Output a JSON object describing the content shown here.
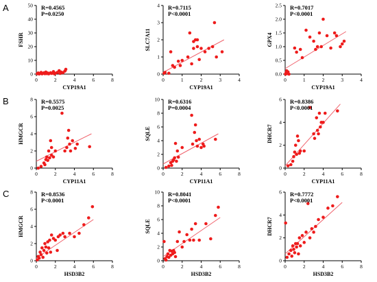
{
  "figure": {
    "row_labels": [
      "A",
      "B",
      "C"
    ],
    "colors": {
      "point": "#ee1c1c",
      "fit_line": "#f0616b",
      "axis": "#000000"
    }
  },
  "chart_data": [
    {
      "type": "scatter",
      "row": "A",
      "xlabel": "CYP19A1",
      "ylabel": "FSHR",
      "stats": [
        "R=0.4565",
        "P=0.0250"
      ],
      "xlim": [
        0,
        8
      ],
      "xticks": [
        0,
        2,
        4,
        6,
        8
      ],
      "ylim": [
        0,
        50
      ],
      "yticks": [
        0,
        10,
        20,
        30,
        40,
        50
      ],
      "points": [
        [
          0.1,
          0.3
        ],
        [
          0.2,
          0.8
        ],
        [
          0.3,
          0.1
        ],
        [
          0.4,
          0.5
        ],
        [
          0.5,
          1.2
        ],
        [
          0.6,
          0.2
        ],
        [
          0.7,
          0.6
        ],
        [
          0.8,
          0.9
        ],
        [
          0.9,
          0.3
        ],
        [
          1.0,
          1.5
        ],
        [
          1.1,
          0.4
        ],
        [
          1.2,
          0.8
        ],
        [
          1.3,
          0.2
        ],
        [
          1.5,
          1.0
        ],
        [
          1.6,
          0.5
        ],
        [
          1.8,
          1.8
        ],
        [
          1.9,
          0.2
        ],
        [
          2.0,
          0.6
        ],
        [
          2.2,
          1.2
        ],
        [
          2.4,
          2.5
        ],
        [
          2.5,
          0.5
        ],
        [
          2.6,
          1.5
        ],
        [
          2.8,
          1.0
        ],
        [
          3.0,
          2.2
        ],
        [
          3.1,
          3.5
        ]
      ],
      "fit": [
        [
          0,
          0.2
        ],
        [
          3.2,
          2.2
        ]
      ]
    },
    {
      "type": "scatter",
      "row": "A",
      "xlabel": "CYP19A1",
      "ylabel": "SLC7A11",
      "stats": [
        "R=0.7115",
        "P<0.0001"
      ],
      "xlim": [
        0,
        4
      ],
      "xticks": [
        0,
        1,
        2,
        3,
        4
      ],
      "ylim": [
        0,
        4
      ],
      "yticks": [
        0,
        1,
        2,
        3,
        4
      ],
      "points": [
        [
          0.05,
          0.05
        ],
        [
          0.1,
          0.1
        ],
        [
          0.3,
          0.05
        ],
        [
          0.4,
          1.3
        ],
        [
          0.5,
          0.5
        ],
        [
          0.6,
          0.4
        ],
        [
          0.8,
          0.75
        ],
        [
          0.9,
          0.5
        ],
        [
          1.0,
          0.8
        ],
        [
          1.3,
          1.0
        ],
        [
          1.4,
          2.4
        ],
        [
          1.5,
          0.6
        ],
        [
          1.6,
          1.5
        ],
        [
          1.6,
          1.9
        ],
        [
          1.7,
          2.0
        ],
        [
          1.8,
          1.6
        ],
        [
          1.8,
          2.0
        ],
        [
          1.9,
          0.85
        ],
        [
          2.0,
          1.5
        ],
        [
          2.2,
          1.3
        ],
        [
          2.4,
          1.5
        ],
        [
          2.6,
          1.6
        ],
        [
          2.7,
          3.0
        ],
        [
          2.8,
          1.0
        ],
        [
          3.1,
          1.3
        ]
      ],
      "fit": [
        [
          0,
          0.1
        ],
        [
          3.2,
          2.0
        ]
      ]
    },
    {
      "type": "scatter",
      "row": "A",
      "xlabel": "CYP19A1",
      "ylabel": "GPX4",
      "stats": [
        "R=0.7017",
        "P<0.0001"
      ],
      "xlim": [
        0,
        4
      ],
      "xticks": [
        0,
        1,
        2,
        3,
        4
      ],
      "ylim": [
        0,
        2.5
      ],
      "yticks": [
        0.0,
        0.5,
        1.0,
        1.5,
        2.0,
        2.5
      ],
      "points": [
        [
          0.02,
          0.0
        ],
        [
          0.05,
          0.05
        ],
        [
          0.08,
          0.12
        ],
        [
          0.1,
          0.02
        ],
        [
          0.15,
          0.08
        ],
        [
          0.2,
          0.0
        ],
        [
          0.5,
          0.95
        ],
        [
          0.6,
          0.8
        ],
        [
          0.8,
          0.9
        ],
        [
          0.9,
          0.6
        ],
        [
          1.1,
          1.6
        ],
        [
          1.3,
          1.35
        ],
        [
          1.5,
          1.2
        ],
        [
          1.6,
          0.9
        ],
        [
          1.7,
          1.0
        ],
        [
          1.8,
          1.5
        ],
        [
          1.9,
          1.0
        ],
        [
          2.0,
          2.0
        ],
        [
          2.2,
          1.4
        ],
        [
          2.4,
          0.95
        ],
        [
          2.6,
          1.5
        ],
        [
          2.7,
          1.4
        ],
        [
          2.9,
          1.0
        ],
        [
          3.0,
          1.1
        ],
        [
          3.1,
          1.2
        ]
      ],
      "fit": [
        [
          0,
          0.2
        ],
        [
          3.2,
          1.55
        ]
      ]
    },
    {
      "type": "scatter",
      "row": "B",
      "xlabel": "CYP11A1",
      "ylabel": "HMGCR",
      "stats": [
        "R=0.5575",
        "P=0.0025"
      ],
      "xlim": [
        0,
        8
      ],
      "xticks": [
        0,
        2,
        4,
        6,
        8
      ],
      "ylim": [
        0,
        8
      ],
      "yticks": [
        0,
        2,
        4,
        6,
        8
      ],
      "points": [
        [
          0.2,
          0.0
        ],
        [
          0.5,
          0.2
        ],
        [
          0.8,
          0.6
        ],
        [
          0.9,
          0.4
        ],
        [
          1.0,
          1.0
        ],
        [
          1.1,
          1.3
        ],
        [
          1.2,
          0.9
        ],
        [
          1.3,
          2.0
        ],
        [
          1.4,
          1.2
        ],
        [
          1.5,
          3.2
        ],
        [
          1.6,
          1.5
        ],
        [
          1.6,
          2.4
        ],
        [
          1.8,
          1.3
        ],
        [
          2.0,
          2.0
        ],
        [
          2.7,
          6.4
        ],
        [
          3.0,
          2.0
        ],
        [
          3.2,
          2.4
        ],
        [
          3.3,
          3.5
        ],
        [
          3.4,
          4.4
        ],
        [
          3.5,
          2.8
        ],
        [
          3.6,
          2.0
        ],
        [
          3.8,
          3.2
        ],
        [
          4.1,
          2.3
        ],
        [
          4.3,
          2.8
        ],
        [
          5.6,
          2.5
        ]
      ],
      "fit": [
        [
          0,
          0.8
        ],
        [
          5.8,
          4.0
        ]
      ]
    },
    {
      "type": "scatter",
      "row": "B",
      "xlabel": "CYP11A1",
      "ylabel": "SQLE",
      "stats": [
        "R=0.6316",
        "P=0.0004"
      ],
      "xlim": [
        0,
        8
      ],
      "xticks": [
        0,
        2,
        4,
        6,
        8
      ],
      "ylim": [
        0,
        10
      ],
      "yticks": [
        0,
        2,
        4,
        6,
        8,
        10
      ],
      "points": [
        [
          0.3,
          0.1
        ],
        [
          0.6,
          0.3
        ],
        [
          0.8,
          0.8
        ],
        [
          0.9,
          0.4
        ],
        [
          1.0,
          1.0
        ],
        [
          1.1,
          1.2
        ],
        [
          1.2,
          1.5
        ],
        [
          1.3,
          3.6
        ],
        [
          1.4,
          1.0
        ],
        [
          1.5,
          2.5
        ],
        [
          1.6,
          1.6
        ],
        [
          2.0,
          3.0
        ],
        [
          3.0,
          7.7
        ],
        [
          3.1,
          3.5
        ],
        [
          3.3,
          5.2
        ],
        [
          3.4,
          6.3
        ],
        [
          3.5,
          4.0
        ],
        [
          3.6,
          3.2
        ],
        [
          3.8,
          4.2
        ],
        [
          4.0,
          3.0
        ],
        [
          4.2,
          3.5
        ],
        [
          4.3,
          3.2
        ],
        [
          5.5,
          4.2
        ]
      ],
      "fit": [
        [
          0,
          0.6
        ],
        [
          5.8,
          5.0
        ]
      ]
    },
    {
      "type": "scatter",
      "row": "B",
      "xlabel": "CYP11A1",
      "ylabel": "DHCR7",
      "stats": [
        "R=0.8386",
        "P<0.0001"
      ],
      "xlim": [
        0,
        8
      ],
      "xticks": [
        0,
        2,
        4,
        6,
        8
      ],
      "ylim": [
        0,
        6
      ],
      "yticks": [
        0,
        2,
        4,
        6
      ],
      "points": [
        [
          0.3,
          0.2
        ],
        [
          0.6,
          0.3
        ],
        [
          0.8,
          0.6
        ],
        [
          0.9,
          1.0
        ],
        [
          1.0,
          1.4
        ],
        [
          1.1,
          2.0
        ],
        [
          1.2,
          1.2
        ],
        [
          1.3,
          2.8
        ],
        [
          1.4,
          2.4
        ],
        [
          1.5,
          1.3
        ],
        [
          1.6,
          1.5
        ],
        [
          2.0,
          1.5
        ],
        [
          2.6,
          5.3
        ],
        [
          3.0,
          3.0
        ],
        [
          3.1,
          2.6
        ],
        [
          3.3,
          4.4
        ],
        [
          3.4,
          3.3
        ],
        [
          3.5,
          3.0
        ],
        [
          3.6,
          4.8
        ],
        [
          3.7,
          3.6
        ],
        [
          3.8,
          4.0
        ],
        [
          4.0,
          4.0
        ],
        [
          4.2,
          4.8
        ],
        [
          5.5,
          5.0
        ]
      ],
      "fit": [
        [
          0,
          0.2
        ],
        [
          5.8,
          5.6
        ]
      ]
    },
    {
      "type": "scatter",
      "row": "C",
      "xlabel": "HSD3B2",
      "ylabel": "HMGCR",
      "stats": [
        "R=0.8536",
        "P<0.0001"
      ],
      "xlim": [
        0,
        8
      ],
      "xticks": [
        0,
        2,
        4,
        6,
        8
      ],
      "ylim": [
        0,
        8
      ],
      "yticks": [
        0,
        2,
        4,
        6,
        8
      ],
      "points": [
        [
          0.1,
          0.1
        ],
        [
          0.2,
          0.5
        ],
        [
          0.3,
          0.3
        ],
        [
          0.4,
          1.0
        ],
        [
          0.5,
          0.7
        ],
        [
          0.6,
          1.5
        ],
        [
          0.7,
          0.4
        ],
        [
          0.8,
          1.2
        ],
        [
          0.9,
          2.0
        ],
        [
          1.0,
          1.6
        ],
        [
          1.1,
          0.9
        ],
        [
          1.2,
          2.2
        ],
        [
          1.3,
          1.5
        ],
        [
          1.4,
          2.4
        ],
        [
          1.5,
          1.0
        ],
        [
          1.6,
          3.0
        ],
        [
          1.8,
          2.6
        ],
        [
          2.0,
          2.4
        ],
        [
          2.2,
          1.2
        ],
        [
          2.3,
          2.8
        ],
        [
          2.5,
          3.0
        ],
        [
          2.8,
          3.2
        ],
        [
          3.0,
          2.8
        ],
        [
          3.5,
          3.2
        ],
        [
          4.0,
          2.8
        ],
        [
          4.5,
          3.2
        ],
        [
          5.0,
          4.2
        ],
        [
          5.5,
          5.0
        ],
        [
          5.9,
          6.3
        ]
      ],
      "fit": [
        [
          0,
          0.3
        ],
        [
          6,
          4.8
        ]
      ]
    },
    {
      "type": "scatter",
      "row": "C",
      "xlabel": "HSD3B2",
      "ylabel": "SQLE",
      "stats": [
        "R=0.8041",
        "P<0.0001"
      ],
      "xlim": [
        0,
        8
      ],
      "xticks": [
        0,
        2,
        4,
        6,
        8
      ],
      "ylim": [
        0,
        10
      ],
      "yticks": [
        0,
        2,
        4,
        6,
        8,
        10
      ],
      "points": [
        [
          0.1,
          2.8
        ],
        [
          0.2,
          0.3
        ],
        [
          0.3,
          0.1
        ],
        [
          0.4,
          0.6
        ],
        [
          0.5,
          1.0
        ],
        [
          0.6,
          0.5
        ],
        [
          0.7,
          1.5
        ],
        [
          0.8,
          0.8
        ],
        [
          0.9,
          1.4
        ],
        [
          1.0,
          1.0
        ],
        [
          1.1,
          1.5
        ],
        [
          1.2,
          1.2
        ],
        [
          1.3,
          0.6
        ],
        [
          1.5,
          2.8
        ],
        [
          1.7,
          4.2
        ],
        [
          2.0,
          2.0
        ],
        [
          2.2,
          2.8
        ],
        [
          2.5,
          3.8
        ],
        [
          2.8,
          3.0
        ],
        [
          3.0,
          4.6
        ],
        [
          3.2,
          3.0
        ],
        [
          3.4,
          5.4
        ],
        [
          3.8,
          3.0
        ],
        [
          4.5,
          5.4
        ],
        [
          5.0,
          3.2
        ],
        [
          5.5,
          6.6
        ],
        [
          5.8,
          7.8
        ]
      ],
      "fit": [
        [
          0,
          0.6
        ],
        [
          6,
          6.3
        ]
      ]
    },
    {
      "type": "scatter",
      "row": "C",
      "xlabel": "HSD3B2",
      "ylabel": "DHCR7",
      "stats": [
        "R=0.7772",
        "P<0.0001"
      ],
      "xlim": [
        0,
        8
      ],
      "xticks": [
        0,
        2,
        4,
        6,
        8
      ],
      "ylim": [
        0,
        6
      ],
      "yticks": [
        0,
        2,
        4,
        6
      ],
      "points": [
        [
          0.05,
          3.3
        ],
        [
          0.2,
          0.3
        ],
        [
          0.4,
          0.6
        ],
        [
          0.6,
          0.9
        ],
        [
          0.7,
          0.4
        ],
        [
          0.8,
          1.3
        ],
        [
          0.9,
          1.0
        ],
        [
          1.0,
          0.7
        ],
        [
          1.1,
          1.5
        ],
        [
          1.2,
          1.2
        ],
        [
          1.3,
          1.5
        ],
        [
          1.4,
          0.6
        ],
        [
          1.5,
          2.0
        ],
        [
          1.6,
          1.3
        ],
        [
          1.8,
          2.2
        ],
        [
          2.0,
          1.6
        ],
        [
          2.2,
          2.5
        ],
        [
          2.4,
          5.0
        ],
        [
          2.6,
          2.0
        ],
        [
          2.8,
          2.8
        ],
        [
          3.0,
          2.5
        ],
        [
          3.2,
          3.0
        ],
        [
          3.5,
          3.6
        ],
        [
          4.0,
          3.8
        ],
        [
          4.5,
          4.6
        ],
        [
          5.0,
          4.8
        ],
        [
          5.5,
          5.6
        ]
      ],
      "fit": [
        [
          0,
          0.6
        ],
        [
          6,
          5.1
        ]
      ]
    }
  ]
}
